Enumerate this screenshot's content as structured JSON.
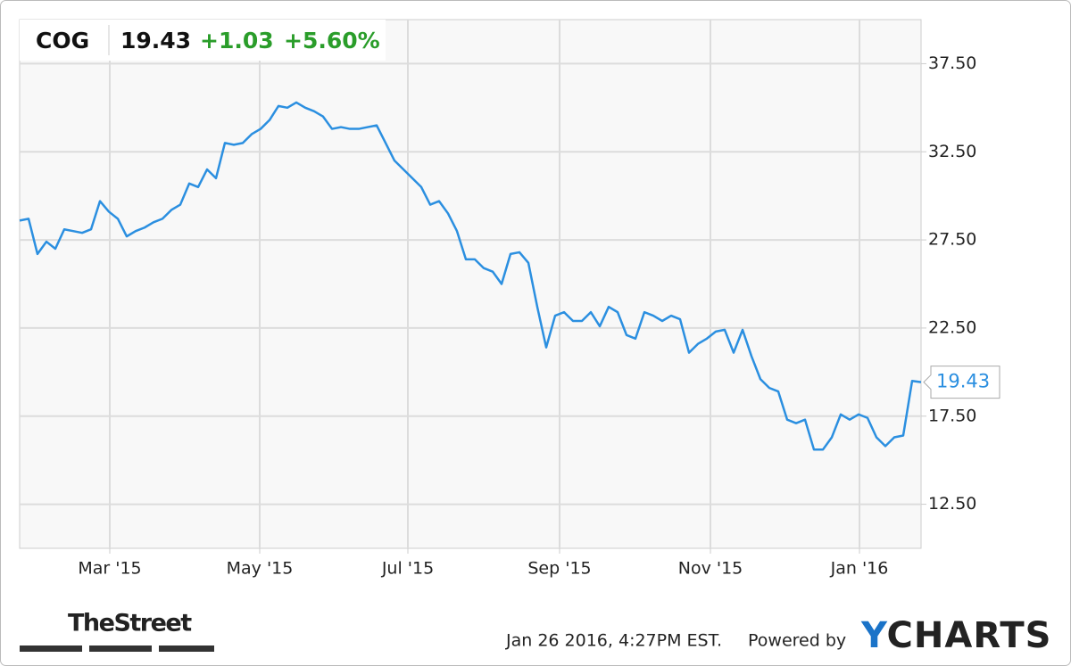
{
  "header": {
    "ticker": "COG",
    "price": "19.43",
    "change": "+1.03",
    "change_percent": "+5.60%"
  },
  "chart_data": {
    "type": "line",
    "series": [
      {
        "color": "#2b8fe0",
        "values": [
          28.6,
          28.7,
          26.7,
          27.4,
          27.0,
          28.1,
          28.0,
          27.9,
          28.1,
          29.7,
          29.1,
          28.7,
          27.7,
          28.0,
          28.2,
          28.5,
          28.7,
          29.2,
          29.5,
          30.7,
          30.5,
          31.5,
          31.0,
          33.0,
          32.9,
          33.0,
          33.5,
          33.8,
          34.3,
          35.1,
          35.0,
          35.3,
          35.0,
          34.8,
          34.5,
          33.8,
          33.9,
          33.8,
          33.8,
          33.9,
          34.0,
          33.0,
          32.0,
          31.5,
          31.0,
          30.5,
          29.5,
          29.7,
          29.0,
          28.0,
          26.4,
          26.4,
          25.9,
          25.7,
          25.0,
          26.7,
          26.8,
          26.2,
          23.7,
          21.4,
          23.2,
          23.4,
          22.9,
          22.9,
          23.4,
          22.6,
          23.7,
          23.4,
          22.1,
          21.9,
          23.4,
          23.2,
          22.9,
          23.2,
          23.0,
          21.1,
          21.6,
          21.9,
          22.3,
          22.4,
          21.1,
          22.4,
          20.9,
          19.6,
          19.1,
          18.9,
          17.3,
          17.1,
          17.3,
          15.6,
          15.6,
          16.3,
          17.6,
          17.3,
          17.6,
          17.4,
          16.3,
          15.8,
          16.3,
          16.4,
          19.5,
          19.43
        ]
      }
    ],
    "xlim": [
      0,
      101
    ],
    "xticks": [
      {
        "value": 10.1,
        "label": "Mar '15"
      },
      {
        "value": 26.9,
        "label": "May '15"
      },
      {
        "value": 43.5,
        "label": "Jul '15"
      },
      {
        "value": 60.5,
        "label": "Sep '15"
      },
      {
        "value": 77.4,
        "label": "Nov '15"
      },
      {
        "value": 94.1,
        "label": "Jan '16"
      }
    ],
    "ylim": [
      10,
      40
    ],
    "yticks": [
      {
        "value": 12.5,
        "label": "12.50"
      },
      {
        "value": 17.5,
        "label": "17.50"
      },
      {
        "value": 22.5,
        "label": "22.50"
      },
      {
        "value": 27.5,
        "label": "27.50"
      },
      {
        "value": 32.5,
        "label": "32.50"
      },
      {
        "value": 37.5,
        "label": "37.50"
      }
    ],
    "grid": true
  },
  "footer": {
    "brand": "TheStreet",
    "timestamp": "Jan 26 2016, 4:27PM EST.",
    "powered_by": "Powered by",
    "logo": "YCHARTS"
  }
}
